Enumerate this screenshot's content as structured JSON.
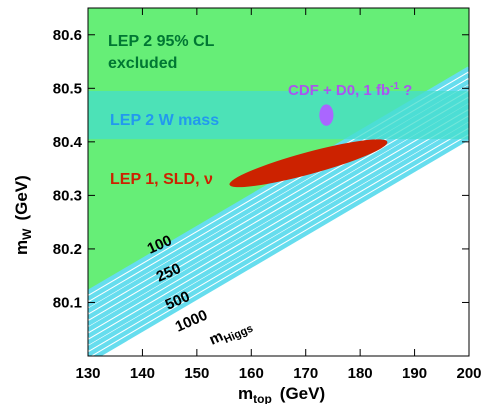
{
  "chart_data": {
    "type": "area",
    "xlabel": "m",
    "xlabel_sub": "top",
    "xlabel_unit": "(GeV)",
    "ylabel": "m",
    "ylabel_sub": "W",
    "ylabel_unit": "(GeV)",
    "xlim": [
      130,
      200
    ],
    "ylim": [
      80.0,
      80.65
    ],
    "x_ticks": [
      130,
      140,
      150,
      160,
      170,
      180,
      190,
      200
    ],
    "y_ticks": [
      80.1,
      80.2,
      80.3,
      80.4,
      80.5,
      80.6
    ],
    "y_tick_labels": [
      "80.1",
      "80.2",
      "80.3",
      "80.4",
      "80.5",
      "80.6"
    ],
    "x_tick_labels": [
      "130",
      "140",
      "150",
      "160",
      "170",
      "180",
      "190",
      "200"
    ],
    "regions": {
      "lep2_excluded": {
        "label_line1": "LEP 2 95% CL",
        "label_line2": "excluded",
        "color": "#66ee77",
        "label_color": "#007733",
        "boundary": [
          [
            130,
            80.115
          ],
          [
            200,
            80.54
          ]
        ]
      },
      "lep2_w_mass": {
        "label": "LEP 2 W mass",
        "color": "#44ddcc",
        "label_color": "#2299ee",
        "y_range": [
          80.405,
          80.495
        ]
      },
      "lep1_sld": {
        "label_main": "LEP 1, SLD, ",
        "label_nu": "ν",
        "color": "#cc2200",
        "label_color": "#cc2200",
        "center": [
          170.5,
          80.36
        ],
        "points": [
          [
            156,
            80.32
          ],
          [
            185,
            80.4
          ]
        ]
      },
      "cdf_d0": {
        "label_main": "CDF + D0, 1 fb",
        "label_sup": "-1",
        "label_end": " ?",
        "color": "#aa66ff",
        "label_color": "#aa55ee",
        "center": [
          173.8,
          80.45
        ],
        "x_halfwidth": 1.3,
        "y_halfwidth": 0.02
      }
    },
    "higgs_bands": {
      "legend_main": "m",
      "legend_sub": "Higgs",
      "band_color": "#66ddee",
      "series": [
        {
          "name": "100",
          "y_at_130": 80.107,
          "y_at_200": 80.525
        },
        {
          "name": "250",
          "y_at_130": 80.072,
          "y_at_200": 80.49
        },
        {
          "name": "500",
          "y_at_130": 80.037,
          "y_at_200": 80.455
        },
        {
          "name": "1000",
          "y_at_130": 80.002,
          "y_at_200": 80.42
        }
      ]
    }
  }
}
